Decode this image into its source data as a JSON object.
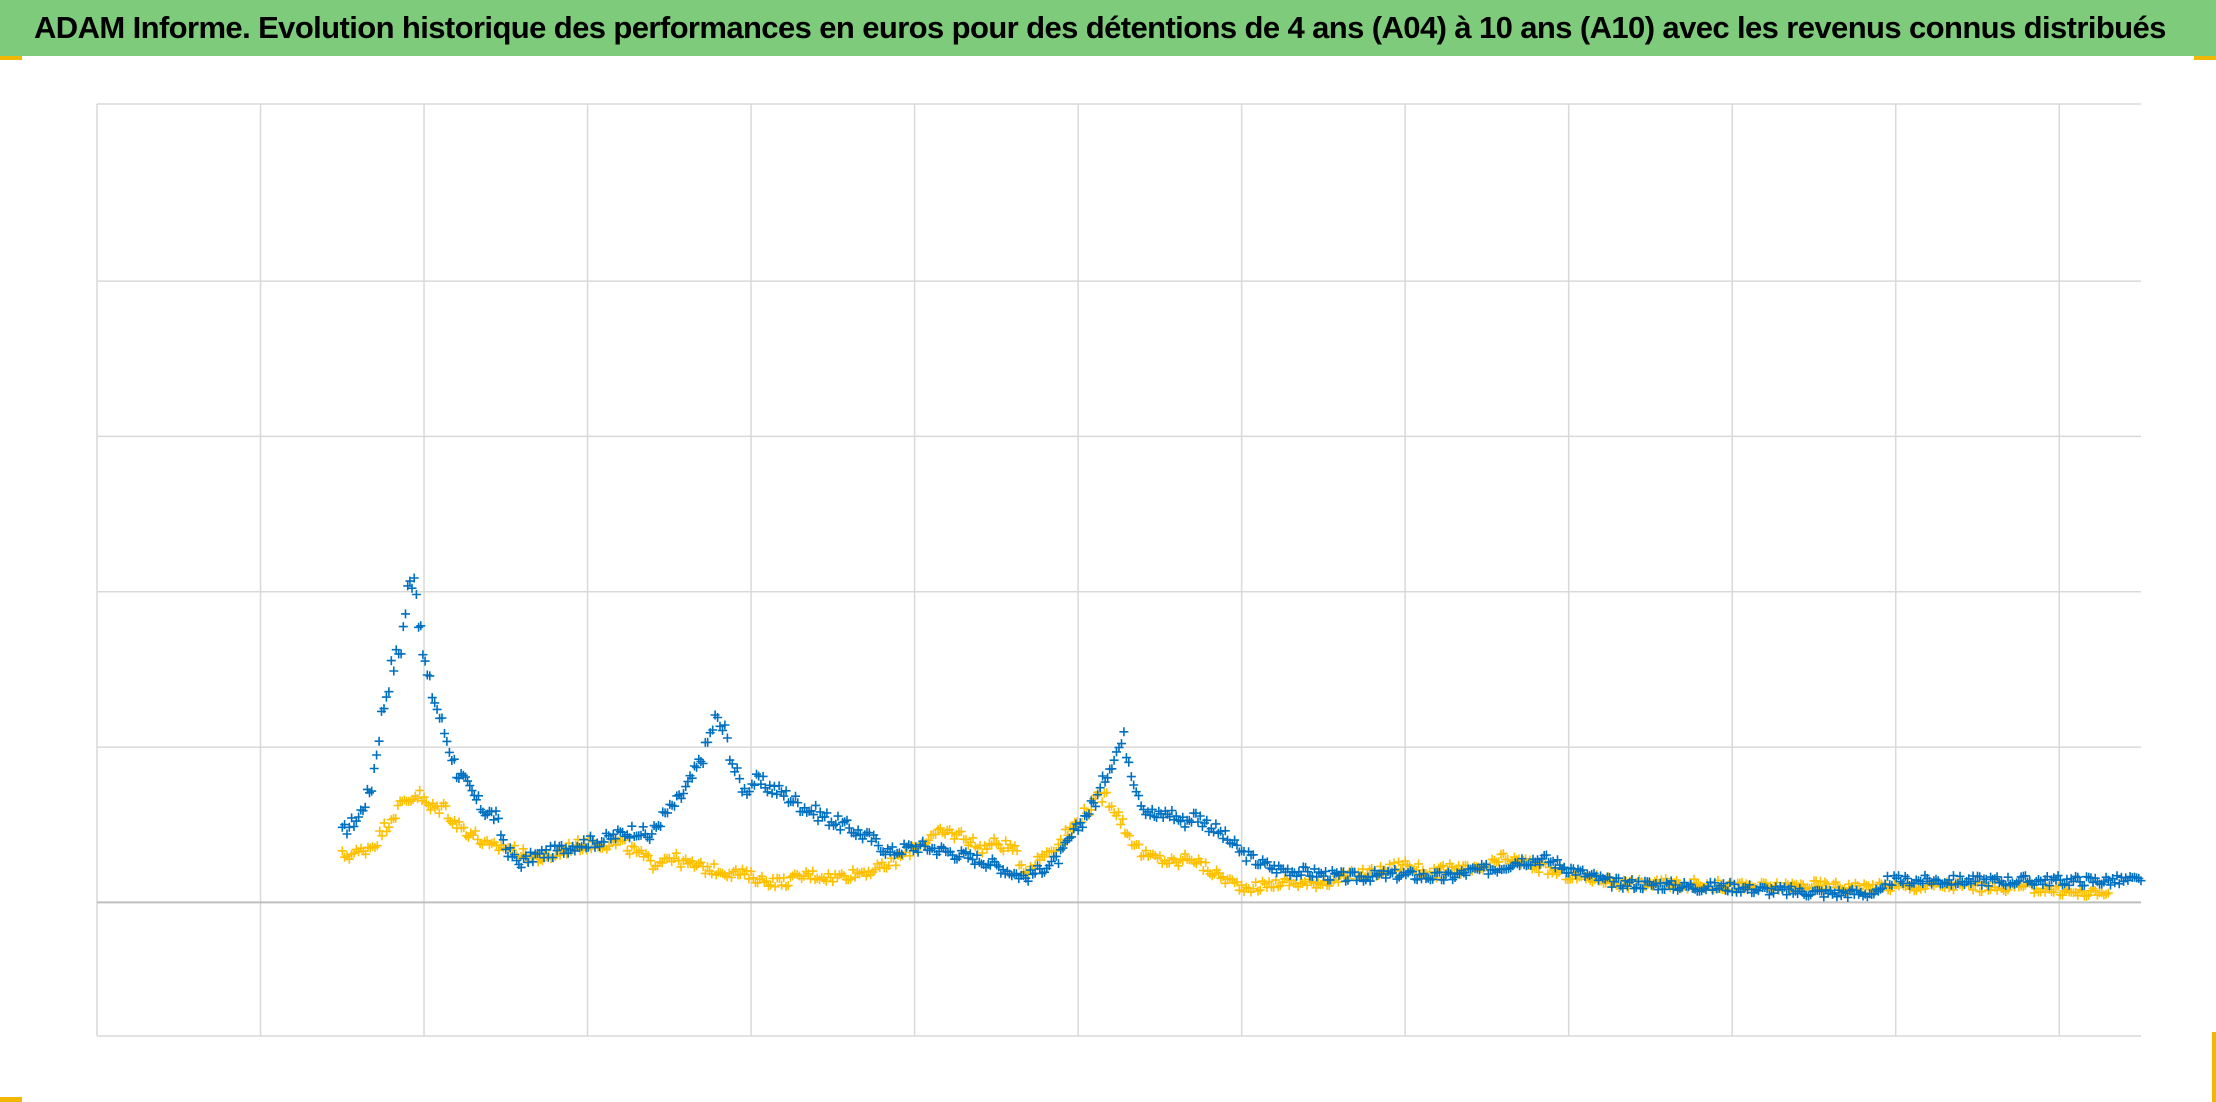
{
  "title": "ADAM Informe. Evolution historique des performances en euros pour des détentions de 4 ans (A04) à 10 ans (A10) avec les revenus connus distribués",
  "colors": {
    "header_bg": "#7fcb7c",
    "grid": "#d9d9d9",
    "axis": "#bfbfbf",
    "frame_corner": "#f2b705"
  },
  "chart_data": {
    "type": "scatter",
    "title": "",
    "xlabel": "",
    "ylabel": "",
    "tick_labels_shown": false,
    "xlim": [
      0,
      12.5
    ],
    "ylim": [
      -0.86,
      5.14
    ],
    "x_gridlines": [
      0,
      1,
      2,
      3,
      4,
      5,
      6,
      7,
      8,
      9,
      10,
      11,
      12
    ],
    "y_gridlines": [
      -0.86,
      0,
      1,
      2,
      3,
      4,
      5.14
    ],
    "zero_line": 0,
    "grid": true,
    "marker": "+",
    "series": [
      {
        "color": "#0070c0",
        "points": [
          [
            1.5,
            0.45
          ],
          [
            1.6,
            0.55
          ],
          [
            1.68,
            0.75
          ],
          [
            1.74,
            1.2
          ],
          [
            1.8,
            1.5
          ],
          [
            1.86,
            1.65
          ],
          [
            1.9,
            2.0
          ],
          [
            1.94,
            2.15
          ],
          [
            1.98,
            1.7
          ],
          [
            2.02,
            1.45
          ],
          [
            2.08,
            1.25
          ],
          [
            2.14,
            1.05
          ],
          [
            2.2,
            0.85
          ],
          [
            2.28,
            0.72
          ],
          [
            2.36,
            0.6
          ],
          [
            2.44,
            0.55
          ],
          [
            2.5,
            0.35
          ],
          [
            2.58,
            0.25
          ],
          [
            2.68,
            0.3
          ],
          [
            2.8,
            0.33
          ],
          [
            2.95,
            0.38
          ],
          [
            3.1,
            0.4
          ],
          [
            3.2,
            0.44
          ],
          [
            3.3,
            0.47
          ],
          [
            3.38,
            0.42
          ],
          [
            3.46,
            0.55
          ],
          [
            3.56,
            0.66
          ],
          [
            3.64,
            0.8
          ],
          [
            3.72,
            0.98
          ],
          [
            3.78,
            1.18
          ],
          [
            3.84,
            1.1
          ],
          [
            3.9,
            0.85
          ],
          [
            3.96,
            0.72
          ],
          [
            4.02,
            0.78
          ],
          [
            4.1,
            0.75
          ],
          [
            4.2,
            0.7
          ],
          [
            4.3,
            0.63
          ],
          [
            4.45,
            0.55
          ],
          [
            4.6,
            0.48
          ],
          [
            4.75,
            0.4
          ],
          [
            4.85,
            0.32
          ],
          [
            4.95,
            0.35
          ],
          [
            5.05,
            0.36
          ],
          [
            5.15,
            0.34
          ],
          [
            5.3,
            0.3
          ],
          [
            5.45,
            0.26
          ],
          [
            5.58,
            0.2
          ],
          [
            5.68,
            0.16
          ],
          [
            5.78,
            0.22
          ],
          [
            5.88,
            0.28
          ],
          [
            5.96,
            0.42
          ],
          [
            6.04,
            0.55
          ],
          [
            6.12,
            0.68
          ],
          [
            6.18,
            0.85
          ],
          [
            6.22,
            0.95
          ],
          [
            6.28,
            1.05
          ],
          [
            6.34,
            0.8
          ],
          [
            6.4,
            0.62
          ],
          [
            6.48,
            0.55
          ],
          [
            6.56,
            0.58
          ],
          [
            6.64,
            0.52
          ],
          [
            6.72,
            0.56
          ],
          [
            6.8,
            0.5
          ],
          [
            6.9,
            0.42
          ],
          [
            7.0,
            0.32
          ],
          [
            7.1,
            0.26
          ],
          [
            7.2,
            0.22
          ],
          [
            7.35,
            0.2
          ],
          [
            7.5,
            0.18
          ],
          [
            7.65,
            0.16
          ],
          [
            7.8,
            0.17
          ],
          [
            7.95,
            0.18
          ],
          [
            8.1,
            0.17
          ],
          [
            8.25,
            0.16
          ],
          [
            8.4,
            0.2
          ],
          [
            8.55,
            0.22
          ],
          [
            8.7,
            0.27
          ],
          [
            8.85,
            0.28
          ],
          [
            9.0,
            0.22
          ],
          [
            9.1,
            0.18
          ],
          [
            9.25,
            0.13
          ],
          [
            9.4,
            0.12
          ],
          [
            9.6,
            0.11
          ],
          [
            9.8,
            0.1
          ],
          [
            10.0,
            0.1
          ],
          [
            10.2,
            0.08
          ],
          [
            10.4,
            0.07
          ],
          [
            10.6,
            0.06
          ],
          [
            10.8,
            0.06
          ],
          [
            10.92,
            0.06
          ],
          [
            10.95,
            0.14
          ],
          [
            11.3,
            0.14
          ],
          [
            11.7,
            0.14
          ],
          [
            12.1,
            0.14
          ],
          [
            12.5,
            0.14
          ]
        ]
      },
      {
        "color": "#ffc000",
        "points": [
          [
            1.5,
            0.3
          ],
          [
            1.6,
            0.32
          ],
          [
            1.7,
            0.38
          ],
          [
            1.8,
            0.55
          ],
          [
            1.88,
            0.65
          ],
          [
            1.96,
            0.7
          ],
          [
            2.04,
            0.6
          ],
          [
            2.12,
            0.62
          ],
          [
            2.2,
            0.5
          ],
          [
            2.3,
            0.44
          ],
          [
            2.4,
            0.35
          ],
          [
            2.5,
            0.36
          ],
          [
            2.62,
            0.3
          ],
          [
            2.75,
            0.28
          ],
          [
            2.9,
            0.36
          ],
          [
            3.05,
            0.38
          ],
          [
            3.2,
            0.38
          ],
          [
            3.3,
            0.32
          ],
          [
            3.4,
            0.25
          ],
          [
            3.5,
            0.3
          ],
          [
            3.6,
            0.25
          ],
          [
            3.72,
            0.22
          ],
          [
            3.84,
            0.2
          ],
          [
            3.96,
            0.18
          ],
          [
            4.08,
            0.14
          ],
          [
            4.2,
            0.13
          ],
          [
            4.35,
            0.18
          ],
          [
            4.5,
            0.16
          ],
          [
            4.65,
            0.19
          ],
          [
            4.8,
            0.22
          ],
          [
            4.9,
            0.28
          ],
          [
            5.0,
            0.36
          ],
          [
            5.1,
            0.42
          ],
          [
            5.2,
            0.45
          ],
          [
            5.3,
            0.43
          ],
          [
            5.4,
            0.35
          ],
          [
            5.5,
            0.38
          ],
          [
            5.6,
            0.35
          ],
          [
            5.68,
            0.2
          ],
          [
            5.78,
            0.3
          ],
          [
            5.88,
            0.38
          ],
          [
            5.98,
            0.5
          ],
          [
            6.08,
            0.62
          ],
          [
            6.16,
            0.7
          ],
          [
            6.22,
            0.62
          ],
          [
            6.3,
            0.45
          ],
          [
            6.4,
            0.3
          ],
          [
            6.5,
            0.28
          ],
          [
            6.6,
            0.25
          ],
          [
            6.68,
            0.3
          ],
          [
            6.78,
            0.22
          ],
          [
            6.9,
            0.15
          ],
          [
            7.0,
            0.1
          ],
          [
            7.1,
            0.1
          ],
          [
            7.25,
            0.13
          ],
          [
            7.4,
            0.12
          ],
          [
            7.55,
            0.14
          ],
          [
            7.7,
            0.18
          ],
          [
            7.85,
            0.2
          ],
          [
            8.0,
            0.25
          ],
          [
            8.15,
            0.18
          ],
          [
            8.3,
            0.22
          ],
          [
            8.45,
            0.2
          ],
          [
            8.6,
            0.28
          ],
          [
            8.75,
            0.25
          ],
          [
            8.9,
            0.2
          ],
          [
            9.05,
            0.16
          ],
          [
            9.2,
            0.15
          ],
          [
            9.35,
            0.12
          ],
          [
            9.5,
            0.12
          ],
          [
            9.7,
            0.12
          ],
          [
            9.9,
            0.11
          ],
          [
            10.1,
            0.1
          ],
          [
            10.3,
            0.1
          ],
          [
            10.5,
            0.11
          ],
          [
            10.7,
            0.1
          ],
          [
            10.9,
            0.1
          ],
          [
            11.1,
            0.1
          ],
          [
            11.3,
            0.11
          ],
          [
            11.5,
            0.1
          ],
          [
            11.7,
            0.1
          ],
          [
            11.9,
            0.09
          ],
          [
            12.1,
            0.06
          ],
          [
            12.3,
            0.06
          ]
        ]
      }
    ]
  }
}
